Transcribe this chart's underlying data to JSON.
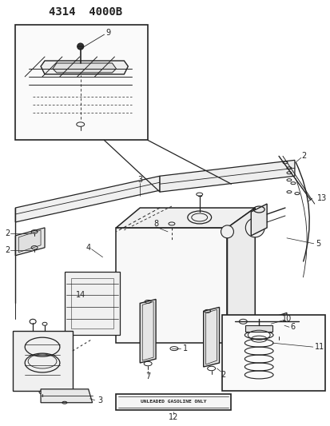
{
  "title": "4314  4000B",
  "bg_color": "#ffffff",
  "lc": "#222222",
  "fig_width": 4.14,
  "fig_height": 5.33,
  "dpi": 100
}
